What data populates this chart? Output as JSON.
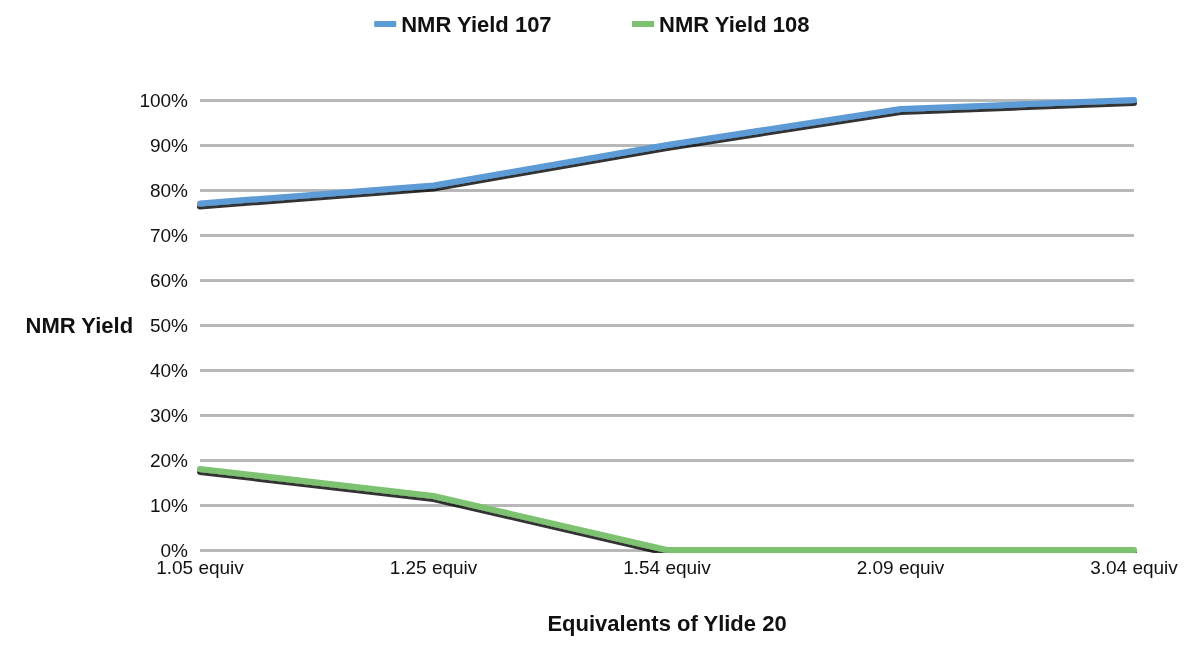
{
  "chart_data": {
    "type": "line",
    "xlabel": "Equivalents of Ylide 20",
    "ylabel": "NMR Yield",
    "categories": [
      "1.05 equiv",
      "1.25 equiv",
      "1.54 equiv",
      "2.09 equiv",
      "3.04 equiv"
    ],
    "series": [
      {
        "name": "NMR Yield 107",
        "color": "#5b9bd5",
        "values": [
          77,
          81,
          90,
          98,
          100
        ]
      },
      {
        "name": "NMR Yield 108",
        "color": "#7cc270",
        "values": [
          18,
          12,
          0,
          0,
          0
        ]
      }
    ],
    "ylim": [
      0,
      100
    ],
    "yticks": [
      {
        "value": 0,
        "label": "0%"
      },
      {
        "value": 10,
        "label": "10%"
      },
      {
        "value": 20,
        "label": "20%"
      },
      {
        "value": 30,
        "label": "30%"
      },
      {
        "value": 40,
        "label": "40%"
      },
      {
        "value": 50,
        "label": "50%"
      },
      {
        "value": 60,
        "label": "60%"
      },
      {
        "value": 70,
        "label": "70%"
      },
      {
        "value": 80,
        "label": "80%"
      },
      {
        "value": 90,
        "label": "90%"
      },
      {
        "value": 100,
        "label": "100%"
      }
    ],
    "grid": "y",
    "legend": "top",
    "marker": "none",
    "line_style": "solid"
  }
}
